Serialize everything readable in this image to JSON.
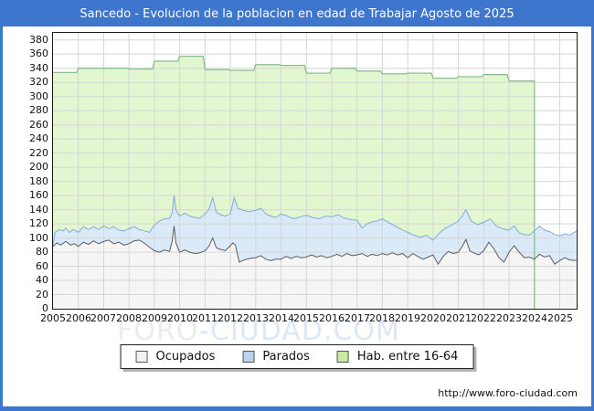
{
  "title": "Sancedo - Evolucion de la poblacion en edad de Trabajar Agosto de 2025",
  "watermark": {
    "part1": "FORO",
    "part2": "-CIUDAD.COM"
  },
  "footer": {
    "url": "http://www.foro-ciudad.com"
  },
  "colors": {
    "frame_blue": "#3d76cc",
    "grid": "#d6d6d6",
    "axis": "#1a1a1a",
    "hab_fill": "#e2f6d0",
    "hab_stroke": "#8cbe92",
    "parados_fill": "#dbeaf8",
    "parados_stroke": "#82abd9",
    "ocupados_fill": "#f5f5f5",
    "ocupados_stroke": "#5c5c5c"
  },
  "legend": {
    "items": [
      {
        "label": "Ocupados",
        "fill": "#f2f2f2",
        "border": "#555555"
      },
      {
        "label": "Parados",
        "fill": "#b9d2ee",
        "border": "#555555"
      },
      {
        "label": "Hab. entre 16-64",
        "fill": "#c8ec9c",
        "border": "#555555"
      }
    ]
  },
  "chart_data": {
    "type": "area",
    "title": "Sancedo - Evolucion de la poblacion en edad de Trabajar Agosto de 2025",
    "xlabel": "",
    "ylabel": "",
    "x_axis": {
      "labels": [
        "2005",
        "2006",
        "2007",
        "2008",
        "2009",
        "2010",
        "2011",
        "2012",
        "2013",
        "2014",
        "2015",
        "2016",
        "2017",
        "2018",
        "2019",
        "2020",
        "2021",
        "2022",
        "2023",
        "2024",
        "2025"
      ],
      "range": [
        2005,
        2025.667
      ]
    },
    "y_axis": {
      "ticks": [
        0,
        20,
        40,
        60,
        80,
        100,
        120,
        140,
        160,
        180,
        200,
        220,
        240,
        260,
        280,
        300,
        320,
        340,
        360,
        380
      ],
      "range": [
        0,
        390
      ]
    },
    "grid": true,
    "legend_position": "bottom",
    "stacking_note": "Blue band = Parados stacked on top of Ocupados; its top edge is Ocupados+Parados. Green step series is the annual working-age population, data ends Jan 2024.",
    "series": [
      {
        "id": "hab",
        "name": "Hab. entre 16-64",
        "style": "step-yearly",
        "start_year": 2005,
        "end_x": 2024.0,
        "values": [
          334,
          340,
          340,
          339,
          350,
          357,
          338,
          337,
          345,
          344,
          333,
          340,
          336,
          332,
          333,
          326,
          328,
          331,
          322
        ]
      },
      {
        "id": "parados_top",
        "name": "Parados (top edge = Ocupados+Parados)",
        "style": "line-area",
        "points": [
          [
            2005.0,
            90
          ],
          [
            2005.08,
            108
          ],
          [
            2005.25,
            112
          ],
          [
            2005.4,
            110
          ],
          [
            2005.5,
            114
          ],
          [
            2005.65,
            108
          ],
          [
            2005.8,
            112
          ],
          [
            2006.0,
            108
          ],
          [
            2006.2,
            116
          ],
          [
            2006.4,
            112
          ],
          [
            2006.6,
            116
          ],
          [
            2006.8,
            112
          ],
          [
            2007.0,
            117
          ],
          [
            2007.2,
            113
          ],
          [
            2007.4,
            116
          ],
          [
            2007.6,
            111
          ],
          [
            2007.8,
            110
          ],
          [
            2008.0,
            113
          ],
          [
            2008.2,
            116
          ],
          [
            2008.4,
            112
          ],
          [
            2008.6,
            110
          ],
          [
            2008.8,
            108
          ],
          [
            2009.0,
            118
          ],
          [
            2009.2,
            124
          ],
          [
            2009.4,
            127
          ],
          [
            2009.6,
            128
          ],
          [
            2009.7,
            135
          ],
          [
            2009.78,
            160
          ],
          [
            2009.85,
            140
          ],
          [
            2010.0,
            131
          ],
          [
            2010.2,
            135
          ],
          [
            2010.4,
            131
          ],
          [
            2010.6,
            129
          ],
          [
            2010.8,
            128
          ],
          [
            2011.0,
            134
          ],
          [
            2011.15,
            140
          ],
          [
            2011.3,
            157
          ],
          [
            2011.45,
            136
          ],
          [
            2011.6,
            133
          ],
          [
            2011.8,
            131
          ],
          [
            2012.0,
            134
          ],
          [
            2012.15,
            157
          ],
          [
            2012.3,
            142
          ],
          [
            2012.5,
            139
          ],
          [
            2012.75,
            137
          ],
          [
            2013.0,
            139
          ],
          [
            2013.2,
            142
          ],
          [
            2013.4,
            134
          ],
          [
            2013.6,
            131
          ],
          [
            2013.8,
            129
          ],
          [
            2014.0,
            134
          ],
          [
            2014.25,
            131
          ],
          [
            2014.5,
            127
          ],
          [
            2014.75,
            130
          ],
          [
            2015.0,
            132
          ],
          [
            2015.25,
            129
          ],
          [
            2015.5,
            127
          ],
          [
            2015.75,
            131
          ],
          [
            2016.0,
            130
          ],
          [
            2016.25,
            133
          ],
          [
            2016.5,
            128
          ],
          [
            2016.75,
            126
          ],
          [
            2017.0,
            125
          ],
          [
            2017.2,
            114
          ],
          [
            2017.4,
            120
          ],
          [
            2017.6,
            123
          ],
          [
            2017.8,
            124
          ],
          [
            2018.0,
            127
          ],
          [
            2018.25,
            122
          ],
          [
            2018.5,
            117
          ],
          [
            2018.75,
            112
          ],
          [
            2019.0,
            108
          ],
          [
            2019.25,
            104
          ],
          [
            2019.5,
            101
          ],
          [
            2019.75,
            104
          ],
          [
            2020.0,
            97
          ],
          [
            2020.25,
            107
          ],
          [
            2020.5,
            114
          ],
          [
            2020.75,
            119
          ],
          [
            2021.0,
            124
          ],
          [
            2021.15,
            131
          ],
          [
            2021.3,
            140
          ],
          [
            2021.5,
            124
          ],
          [
            2021.75,
            119
          ],
          [
            2022.0,
            122
          ],
          [
            2022.25,
            127
          ],
          [
            2022.5,
            117
          ],
          [
            2022.75,
            113
          ],
          [
            2023.0,
            111
          ],
          [
            2023.2,
            117
          ],
          [
            2023.4,
            107
          ],
          [
            2023.6,
            105
          ],
          [
            2023.8,
            104
          ],
          [
            2024.0,
            110
          ],
          [
            2024.2,
            117
          ],
          [
            2024.4,
            111
          ],
          [
            2024.6,
            109
          ],
          [
            2024.8,
            105
          ],
          [
            2025.0,
            103
          ],
          [
            2025.2,
            106
          ],
          [
            2025.4,
            104
          ],
          [
            2025.66,
            110
          ]
        ]
      },
      {
        "id": "ocupados",
        "name": "Ocupados",
        "style": "line-area",
        "points": [
          [
            2005.0,
            88
          ],
          [
            2005.15,
            93
          ],
          [
            2005.3,
            90
          ],
          [
            2005.5,
            95
          ],
          [
            2005.7,
            90
          ],
          [
            2005.85,
            92
          ],
          [
            2006.0,
            88
          ],
          [
            2006.2,
            94
          ],
          [
            2006.4,
            91
          ],
          [
            2006.6,
            96
          ],
          [
            2006.8,
            92
          ],
          [
            2007.0,
            95
          ],
          [
            2007.2,
            97
          ],
          [
            2007.4,
            92
          ],
          [
            2007.6,
            94
          ],
          [
            2007.8,
            90
          ],
          [
            2008.0,
            92
          ],
          [
            2008.2,
            96
          ],
          [
            2008.4,
            97
          ],
          [
            2008.6,
            93
          ],
          [
            2008.8,
            87
          ],
          [
            2009.0,
            82
          ],
          [
            2009.2,
            80
          ],
          [
            2009.4,
            83
          ],
          [
            2009.6,
            81
          ],
          [
            2009.7,
            95
          ],
          [
            2009.78,
            117
          ],
          [
            2009.85,
            93
          ],
          [
            2010.0,
            80
          ],
          [
            2010.2,
            83
          ],
          [
            2010.4,
            80
          ],
          [
            2010.6,
            78
          ],
          [
            2010.8,
            79
          ],
          [
            2011.0,
            82
          ],
          [
            2011.15,
            88
          ],
          [
            2011.3,
            100
          ],
          [
            2011.45,
            86
          ],
          [
            2011.6,
            84
          ],
          [
            2011.8,
            82
          ],
          [
            2012.0,
            89
          ],
          [
            2012.1,
            93
          ],
          [
            2012.2,
            90
          ],
          [
            2012.35,
            66
          ],
          [
            2012.55,
            69
          ],
          [
            2012.75,
            71
          ],
          [
            2013.0,
            72
          ],
          [
            2013.2,
            75
          ],
          [
            2013.4,
            70
          ],
          [
            2013.6,
            68
          ],
          [
            2013.8,
            70
          ],
          [
            2014.0,
            70
          ],
          [
            2014.2,
            74
          ],
          [
            2014.4,
            71
          ],
          [
            2014.6,
            74
          ],
          [
            2014.8,
            72
          ],
          [
            2015.0,
            73
          ],
          [
            2015.2,
            76
          ],
          [
            2015.4,
            73
          ],
          [
            2015.6,
            75
          ],
          [
            2015.8,
            72
          ],
          [
            2016.0,
            74
          ],
          [
            2016.2,
            77
          ],
          [
            2016.4,
            74
          ],
          [
            2016.6,
            78
          ],
          [
            2016.8,
            75
          ],
          [
            2017.0,
            76
          ],
          [
            2017.2,
            78
          ],
          [
            2017.4,
            74
          ],
          [
            2017.6,
            77
          ],
          [
            2017.8,
            75
          ],
          [
            2018.0,
            78
          ],
          [
            2018.2,
            76
          ],
          [
            2018.4,
            79
          ],
          [
            2018.6,
            76
          ],
          [
            2018.8,
            78
          ],
          [
            2019.0,
            72
          ],
          [
            2019.2,
            78
          ],
          [
            2019.4,
            74
          ],
          [
            2019.6,
            70
          ],
          [
            2019.8,
            73
          ],
          [
            2020.0,
            76
          ],
          [
            2020.2,
            63
          ],
          [
            2020.4,
            74
          ],
          [
            2020.6,
            81
          ],
          [
            2020.8,
            78
          ],
          [
            2021.0,
            80
          ],
          [
            2021.15,
            88
          ],
          [
            2021.3,
            98
          ],
          [
            2021.45,
            82
          ],
          [
            2021.6,
            79
          ],
          [
            2021.8,
            76
          ],
          [
            2022.0,
            82
          ],
          [
            2022.2,
            94
          ],
          [
            2022.4,
            85
          ],
          [
            2022.6,
            72
          ],
          [
            2022.8,
            66
          ],
          [
            2023.0,
            80
          ],
          [
            2023.2,
            89
          ],
          [
            2023.4,
            80
          ],
          [
            2023.6,
            72
          ],
          [
            2023.8,
            73
          ],
          [
            2024.0,
            70
          ],
          [
            2024.2,
            77
          ],
          [
            2024.4,
            73
          ],
          [
            2024.6,
            75
          ],
          [
            2024.8,
            63
          ],
          [
            2025.0,
            68
          ],
          [
            2025.2,
            72
          ],
          [
            2025.4,
            69
          ],
          [
            2025.66,
            68
          ]
        ]
      }
    ]
  }
}
